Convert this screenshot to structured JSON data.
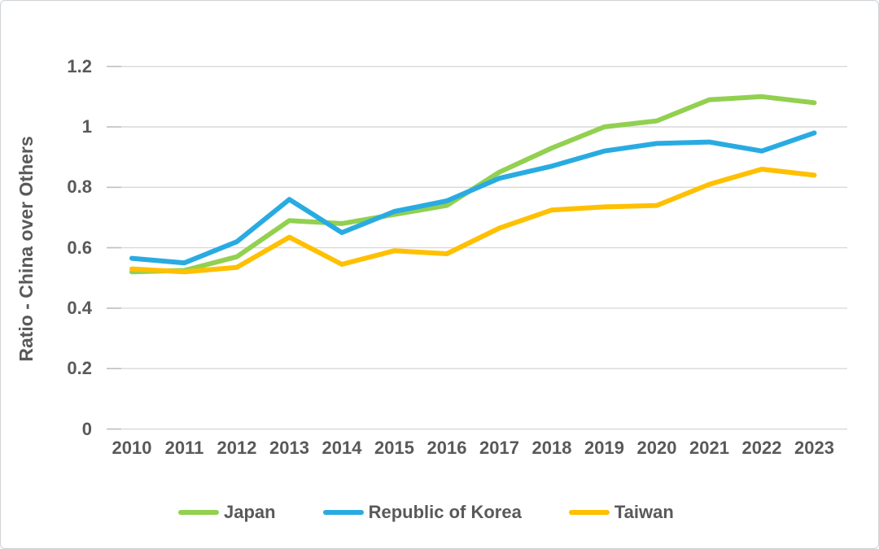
{
  "chart_data": {
    "type": "line",
    "title": "",
    "xlabel": "",
    "ylabel": "Ratio - China over Others",
    "categories": [
      "2010",
      "2011",
      "2012",
      "2013",
      "2014",
      "2015",
      "2016",
      "2017",
      "2018",
      "2019",
      "2020",
      "2021",
      "2022",
      "2023"
    ],
    "series": [
      {
        "name": "Japan",
        "color": "#92d050",
        "values": [
          0.52,
          0.525,
          0.57,
          0.69,
          0.68,
          0.71,
          0.74,
          0.85,
          0.93,
          1.0,
          1.02,
          1.09,
          1.1,
          1.08
        ]
      },
      {
        "name": "Republic of Korea",
        "color": "#29abe2",
        "values": [
          0.565,
          0.55,
          0.62,
          0.76,
          0.65,
          0.72,
          0.755,
          0.83,
          0.87,
          0.92,
          0.945,
          0.95,
          0.92,
          0.98
        ]
      },
      {
        "name": "Taiwan",
        "color": "#ffc000",
        "values": [
          0.53,
          0.52,
          0.535,
          0.635,
          0.545,
          0.59,
          0.58,
          0.665,
          0.725,
          0.735,
          0.74,
          0.81,
          0.86,
          0.84
        ]
      }
    ],
    "ylim": [
      0,
      1.2
    ],
    "yticks": {
      "values": [
        0,
        0.2,
        0.4,
        0.6,
        0.8,
        1,
        1.2
      ],
      "labels": [
        "0",
        "0.2",
        "0.4",
        "0.6",
        "0.8",
        "1",
        "1.2"
      ]
    },
    "grid": "horizontal",
    "legend_position": "bottom"
  },
  "style": {
    "grid_color": "#d9d9d9",
    "tick_color": "#c0c0c0",
    "text_color": "#595959",
    "background": "#ffffff",
    "border_color": "#cfd2d5"
  }
}
